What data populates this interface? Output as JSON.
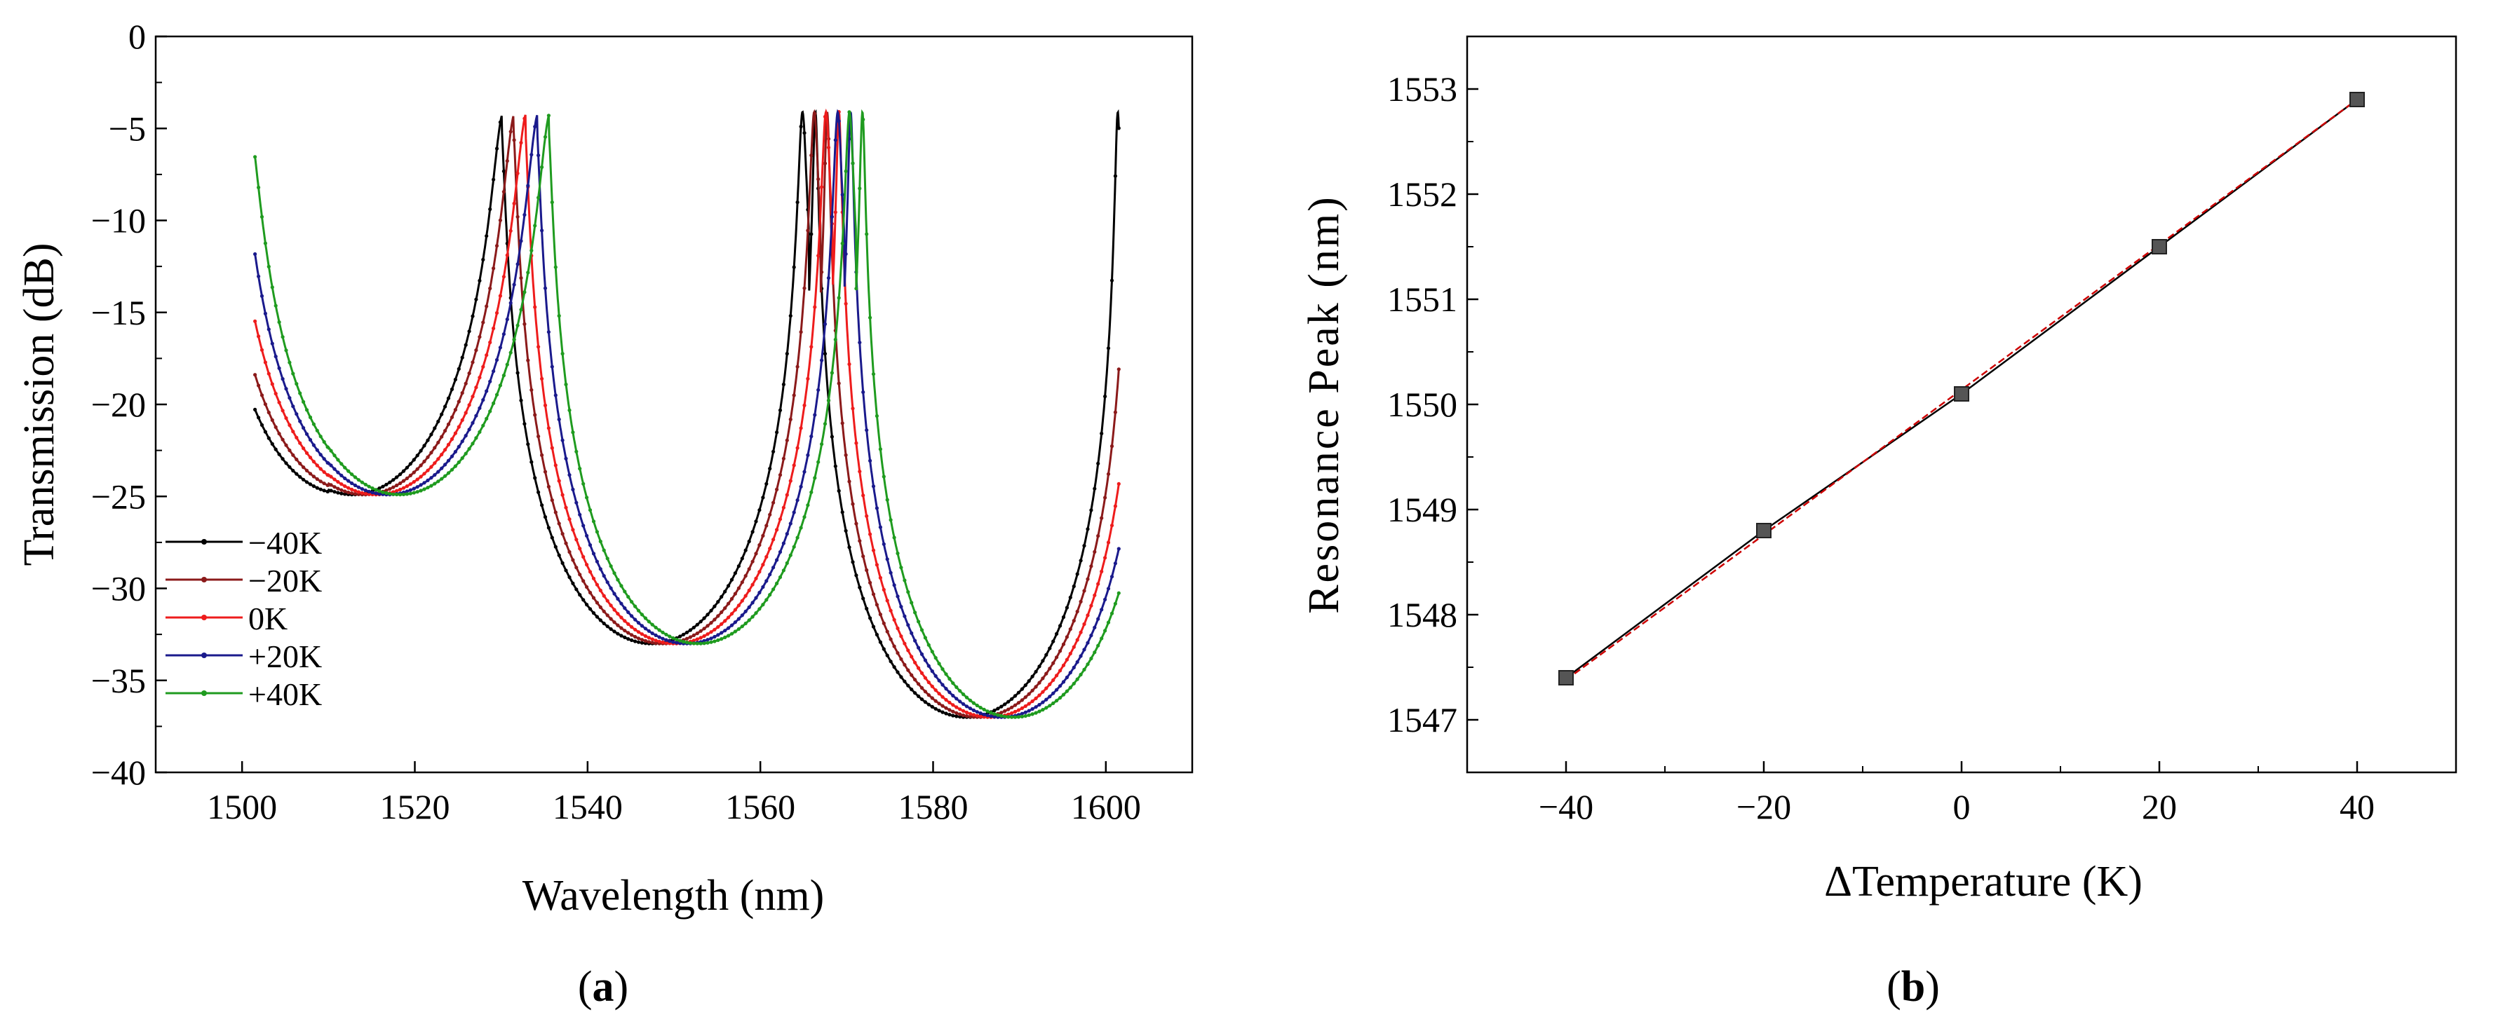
{
  "figure": {
    "panel_a_label_prefix": "(",
    "panel_a_letter": "a",
    "panel_a_label_suffix": ")",
    "panel_b_label_prefix": "(",
    "panel_b_letter": "b",
    "panel_b_label_suffix": ")"
  },
  "chart_data": [
    {
      "type": "line",
      "panel": "a",
      "title": "",
      "xlabel": "Wavelength (nm)",
      "ylabel": "Transmission (dB)",
      "xlim": [
        1490,
        1610
      ],
      "ylim": [
        -40,
        0
      ],
      "xticks": [
        1500,
        1520,
        1540,
        1560,
        1580,
        1600
      ],
      "yticks": [
        0,
        -5,
        -10,
        -15,
        -20,
        -25,
        -30,
        -35,
        -40
      ],
      "grid": false,
      "legend_position": "bottom-left",
      "model": {
        "x_range": [
          1501.5,
          1601.5
        ],
        "peak_min": -4.1,
        "dips": [
          {
            "center_at_0K": 1515.5,
            "depth": -24.9,
            "width": 2.6
          },
          {
            "center_at_0K": 1550.1,
            "depth": -33.0,
            "width": 2.5
          },
          {
            "center_at_0K": 1586.6,
            "depth": -37.0,
            "width": 2.5
          }
        ],
        "shift_nm_per_K": 0.068
      },
      "series": [
        {
          "name": "−40K",
          "delta_T": -40,
          "color": "#000000"
        },
        {
          "name": "−20K",
          "delta_T": -20,
          "color": "#8b1a1a"
        },
        {
          "name": "0K",
          "delta_T": 0,
          "color": "#ee1c1c"
        },
        {
          "name": "+20K",
          "delta_T": 20,
          "color": "#1a1a8c"
        },
        {
          "name": "+40K",
          "delta_T": 40,
          "color": "#1f9b1f"
        }
      ]
    },
    {
      "type": "scatter",
      "panel": "b",
      "title": "",
      "xlabel": "ΔTemperature (K)",
      "ylabel": "Resonance Peak  (nm)",
      "xlim": [
        -50,
        50
      ],
      "ylim": [
        1546.5,
        1553.5
      ],
      "xticks": [
        -40,
        -20,
        0,
        20,
        40
      ],
      "yticks": [
        1547,
        1548,
        1549,
        1550,
        1551,
        1552,
        1553
      ],
      "grid": false,
      "x": [
        -40,
        -20,
        0,
        20,
        40
      ],
      "y": [
        1547.4,
        1548.8,
        1550.1,
        1551.5,
        1552.9
      ],
      "fit": {
        "slope": 0.069,
        "intercept": 1550.14,
        "color": "#cc0000"
      },
      "line_color": "#000000",
      "marker_color": "#555555"
    }
  ]
}
